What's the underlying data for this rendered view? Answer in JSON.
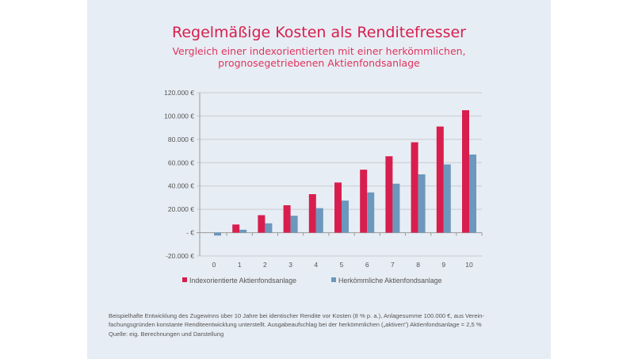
{
  "title": "Regelmäßige Kosten als Renditefresser",
  "subtitle_line1": "Vergleich einer indexorientierten mit einer herkömmlichen,",
  "subtitle_line2": "prognosegetriebenen Aktienfondsanlage",
  "footnote_line1": "Beispielhafte Entwicklung des Zugewinns über 10 Jahre bei identischer Rendite vor Kosten (8 % p. a.), Anlagesumme 100.000 €, aus Verein-",
  "footnote_line2": "fachungsgründen konstante Renditeentwicklung unterstellt. Ausgabeaufschlag bei der herkömmlichen („aktiven\") Aktienfondsanlage = 2,5 %",
  "source": "Quelle: eig. Berechnungen und Darstellung",
  "colors": {
    "accent": "#d81e4e",
    "series1": "#d81e4e",
    "series2": "#6b98bc"
  },
  "chart_data": {
    "type": "bar",
    "categories": [
      "0",
      "1",
      "2",
      "3",
      "4",
      "5",
      "6",
      "7",
      "8",
      "9",
      "10"
    ],
    "series": [
      {
        "name": "Indexorientierte Aktienfondsanlage",
        "color": "#d81e4e",
        "values": [
          0,
          7000,
          15000,
          23500,
          33000,
          43000,
          54000,
          65500,
          77500,
          91000,
          105000
        ]
      },
      {
        "name": "Herkömmliche Aktienfondsanlage",
        "color": "#6b98bc",
        "values": [
          -2500,
          2500,
          8000,
          14500,
          21000,
          27500,
          34500,
          42000,
          50000,
          58500,
          67000
        ]
      }
    ],
    "ylim": [
      -20000,
      120000
    ],
    "yticks": [
      -20000,
      0,
      20000,
      40000,
      60000,
      80000,
      100000,
      120000
    ],
    "ytick_labels": [
      "-20.000 €",
      "-   €",
      "20.000 €",
      "40.000 €",
      "60.000 €",
      "80.000 €",
      "100.000 €",
      "120.000 €"
    ],
    "grid": true,
    "legend": "bottom"
  }
}
